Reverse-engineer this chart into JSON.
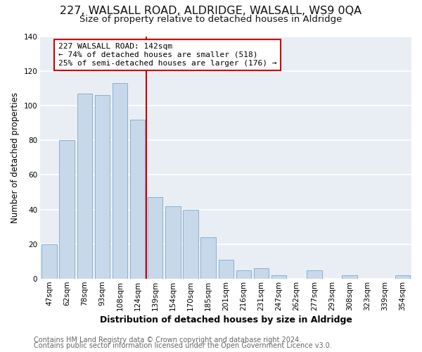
{
  "title": "227, WALSALL ROAD, ALDRIDGE, WALSALL, WS9 0QA",
  "subtitle": "Size of property relative to detached houses in Aldridge",
  "xlabel": "Distribution of detached houses by size in Aldridge",
  "ylabel": "Number of detached properties",
  "bar_labels": [
    "47sqm",
    "62sqm",
    "78sqm",
    "93sqm",
    "108sqm",
    "124sqm",
    "139sqm",
    "154sqm",
    "170sqm",
    "185sqm",
    "201sqm",
    "216sqm",
    "231sqm",
    "247sqm",
    "262sqm",
    "277sqm",
    "293sqm",
    "308sqm",
    "323sqm",
    "339sqm",
    "354sqm"
  ],
  "bar_heights": [
    20,
    80,
    107,
    106,
    113,
    92,
    47,
    42,
    40,
    24,
    11,
    5,
    6,
    2,
    0,
    5,
    0,
    2,
    0,
    0,
    2
  ],
  "bar_color": "#c8d8eb",
  "bar_edge_color": "#8ab0cc",
  "vline_x_index": 6,
  "vline_color": "#cc0000",
  "annotation_text": "227 WALSALL ROAD: 142sqm\n← 74% of detached houses are smaller (518)\n25% of semi-detached houses are larger (176) →",
  "annotation_box_color": "#ffffff",
  "annotation_box_edge_color": "#cc0000",
  "ylim": [
    0,
    140
  ],
  "yticks": [
    0,
    20,
    40,
    60,
    80,
    100,
    120,
    140
  ],
  "footer_line1": "Contains HM Land Registry data © Crown copyright and database right 2024.",
  "footer_line2": "Contains public sector information licensed under the Open Government Licence v3.0.",
  "plot_bg_color": "#e8eef4",
  "fig_bg_color": "#ffffff",
  "grid_color": "#ffffff",
  "title_fontsize": 11.5,
  "subtitle_fontsize": 9.5,
  "xlabel_fontsize": 9,
  "ylabel_fontsize": 8.5,
  "tick_fontsize": 7.5,
  "footer_fontsize": 7,
  "annot_fontsize": 8
}
